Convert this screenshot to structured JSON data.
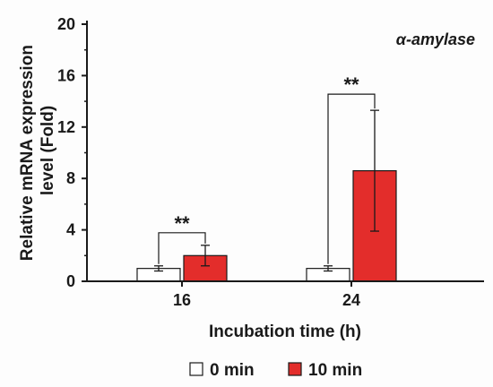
{
  "chart_data": {
    "type": "bar",
    "categories": [
      "16",
      "24"
    ],
    "series": [
      {
        "name": "0 min",
        "color": "#ffffff",
        "values": [
          1.0,
          1.0
        ],
        "errors": [
          0.2,
          0.2
        ]
      },
      {
        "name": "10 min",
        "color": "#e32d2b",
        "values": [
          2.0,
          8.6
        ],
        "errors": [
          0.8,
          4.7
        ]
      }
    ],
    "xlabel": "Incubation time (h)",
    "ylabel_lines": [
      "Relative mRNA expression",
      "level (Fold)"
    ],
    "ylim": [
      0,
      20
    ],
    "yticks": [
      "0",
      "4",
      "8",
      "12",
      "16",
      "20"
    ],
    "annotation": "α-amylase",
    "significance": [
      "**",
      "**"
    ],
    "grid": false,
    "legend_position": "bottom"
  }
}
